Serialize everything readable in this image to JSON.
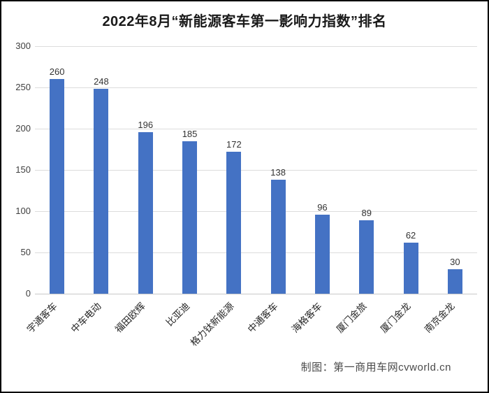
{
  "chart_data": {
    "type": "bar",
    "title": "2022年8月“新能源客车第一影响力指数”排名",
    "categories": [
      "宇通客车",
      "中车电动",
      "福田欧辉",
      "比亚迪",
      "格力钛新能源",
      "中通客车",
      "海格客车",
      "厦门金旅",
      "厦门金龙",
      "南京金龙"
    ],
    "values": [
      260,
      248,
      196,
      185,
      172,
      138,
      96,
      89,
      62,
      30
    ],
    "xlabel": "",
    "ylabel": "",
    "ylim": [
      0,
      300
    ],
    "y_axis_ticks": [
      0,
      50,
      100,
      150,
      200,
      250,
      300
    ],
    "grid": "horizontal",
    "legend": "none",
    "bar_color": "#4472c4",
    "gridline_color": "#dcdcdc",
    "value_labels_shown": true
  },
  "footer": {
    "credit": "制图：第一商用车网cvworld.cn"
  }
}
